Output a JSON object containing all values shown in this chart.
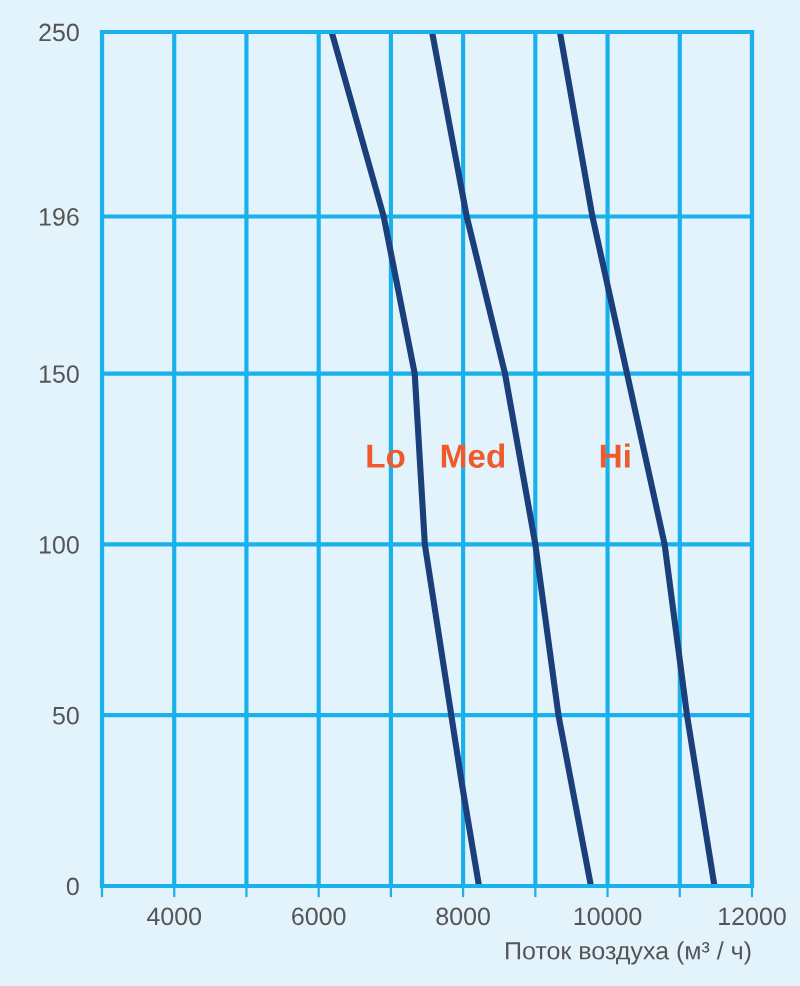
{
  "chart_data": {
    "type": "line",
    "xlabel": "Поток воздуха (м³ / ч)",
    "xlim": [
      3000,
      12000
    ],
    "ylim": [
      0,
      250
    ],
    "xticks": [
      {
        "value": 3000,
        "label": null
      },
      4000,
      {
        "value": 5000,
        "label": null
      },
      6000,
      {
        "value": 7000,
        "label": null
      },
      8000,
      {
        "value": 9000,
        "label": null
      },
      10000,
      {
        "value": 11000,
        "label": null
      },
      12000
    ],
    "yticks": [
      0,
      50,
      100,
      150,
      196,
      250
    ],
    "grid": true,
    "line_style": "solid",
    "marker": "none",
    "series": [
      {
        "name": "Lo",
        "color": "#1a3f7a",
        "x": [
          6180,
          6900,
          7330,
          7470,
          7990,
          8220
        ],
        "values": [
          250,
          196,
          150,
          100,
          29,
          0
        ]
      },
      {
        "name": "Med",
        "color": "#1a3f7a",
        "x": [
          7570,
          8050,
          8580,
          9000,
          9320,
          9770
        ],
        "values": [
          250,
          196,
          150,
          100,
          50,
          0
        ]
      },
      {
        "name": "Hi",
        "color": "#1a3f7a",
        "x": [
          9340,
          9790,
          10270,
          10790,
          11100,
          11480
        ],
        "values": [
          250,
          196,
          150,
          100,
          50,
          0
        ]
      }
    ]
  }
}
